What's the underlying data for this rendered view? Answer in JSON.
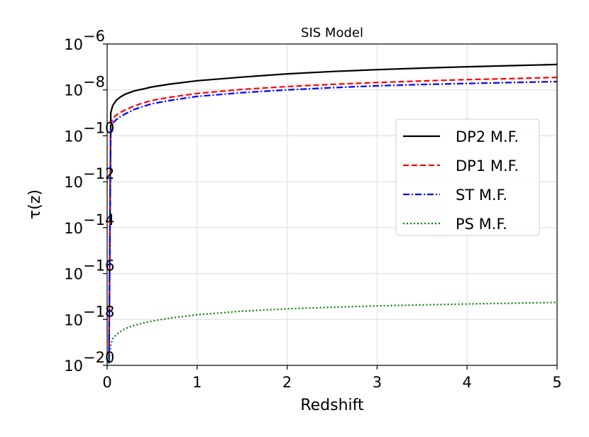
{
  "chart_data": {
    "type": "line",
    "title": "SIS Model",
    "xlabel": "Redshift",
    "ylabel": "τ(z)",
    "xlim": [
      0,
      5
    ],
    "ylim_log10": [
      -20,
      -6
    ],
    "yscale": "log",
    "grid": true,
    "legend_position": "center-right",
    "x_ticks": [
      0,
      1,
      2,
      3,
      4,
      5
    ],
    "x_tick_labels": [
      "0",
      "1",
      "2",
      "3",
      "4",
      "5"
    ],
    "y_tick_exponents": [
      -20,
      -18,
      -16,
      -14,
      -12,
      -10,
      -8,
      -6
    ],
    "y_tick_base": "10",
    "y_tick_exps": [
      "−20",
      "−18",
      "−16",
      "−14",
      "−12",
      "−10",
      "−8",
      "−6"
    ],
    "series": [
      {
        "name": "DP2 M.F.",
        "color": "#000000",
        "style": "solid",
        "x": [
          0.02,
          0.04,
          0.06,
          0.1,
          0.15,
          0.2,
          0.3,
          0.4,
          0.5,
          0.7,
          1.0,
          1.5,
          2.0,
          2.5,
          3.0,
          3.5,
          4.0,
          4.5,
          5.0
        ],
        "y": [
          1.2e-20,
          1e-09,
          2e-09,
          3.5e-09,
          5e-09,
          6.5e-09,
          9e-09,
          1.1e-08,
          1.35e-08,
          1.8e-08,
          2.5e-08,
          3.6e-08,
          5e-08,
          6.3e-08,
          7.6e-08,
          8.9e-08,
          1.02e-07,
          1.14e-07,
          1.28e-07
        ]
      },
      {
        "name": "DP1 M.F.",
        "color": "#ff0000",
        "style": "dashed",
        "x": [
          0.02,
          0.04,
          0.06,
          0.1,
          0.15,
          0.2,
          0.3,
          0.4,
          0.5,
          0.7,
          1.0,
          1.5,
          2.0,
          2.5,
          3.0,
          3.5,
          4.0,
          4.5,
          5.0
        ],
        "y": [
          1.2e-20,
          3e-10,
          5.5e-10,
          8e-10,
          1.05e-09,
          1.35e-09,
          2e-09,
          2.7e-09,
          3.5e-09,
          4.8e-09,
          7e-09,
          1.05e-08,
          1.4e-08,
          1.75e-08,
          2.1e-08,
          2.45e-08,
          2.8e-08,
          3.1e-08,
          3.5e-08
        ]
      },
      {
        "name": "ST M.F.",
        "color": "#0000ff",
        "style": "dashdot",
        "x": [
          0.02,
          0.04,
          0.06,
          0.1,
          0.15,
          0.2,
          0.3,
          0.4,
          0.5,
          0.7,
          1.0,
          1.5,
          2.0,
          2.5,
          3.0,
          3.5,
          4.0,
          4.5,
          5.0
        ],
        "y": [
          1.2e-20,
          2e-10,
          3.5e-10,
          5e-10,
          7e-10,
          9e-10,
          1.4e-09,
          1.9e-09,
          2.5e-09,
          3.5e-09,
          5.2e-09,
          7.6e-09,
          1e-08,
          1.25e-08,
          1.5e-08,
          1.72e-08,
          1.9e-08,
          2.1e-08,
          2.3e-08
        ]
      },
      {
        "name": "PS M.F.",
        "color": "#008000",
        "style": "dotted",
        "x": [
          0.02,
          0.04,
          0.06,
          0.1,
          0.15,
          0.2,
          0.3,
          0.4,
          0.5,
          0.7,
          1.0,
          1.5,
          2.0,
          2.5,
          3.0,
          3.5,
          4.0,
          4.5,
          5.0
        ],
        "y": [
          1.2e-20,
          8e-20,
          1.4e-19,
          2.2e-19,
          3e-19,
          4e-19,
          5.5e-19,
          7e-19,
          8.5e-19,
          1.15e-18,
          1.6e-18,
          2.3e-18,
          2.9e-18,
          3.4e-18,
          3.9e-18,
          4.3e-18,
          4.7e-18,
          5.1e-18,
          5.5e-18
        ]
      }
    ]
  }
}
